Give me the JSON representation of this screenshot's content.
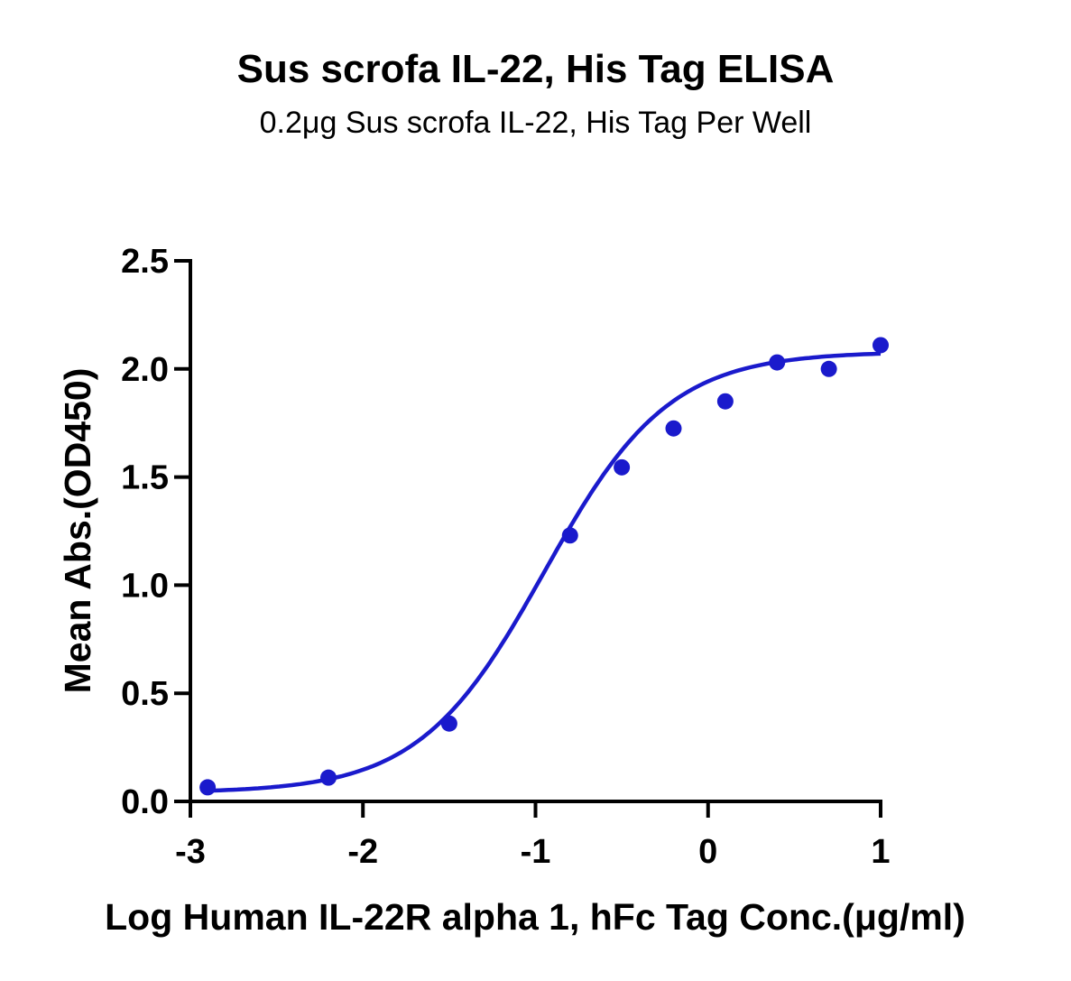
{
  "chart_data": {
    "type": "scatter",
    "title": "Sus scrofa IL-22, His Tag ELISA",
    "subtitle": "0.2μg Sus scrofa IL-22, His Tag Per Well",
    "xlabel": "Log Human IL-22R alpha 1, hFc Tag Conc.(μg/ml)",
    "ylabel": "Mean Abs.(OD450)",
    "xlim": [
      -3,
      1
    ],
    "ylim": [
      0,
      2.5
    ],
    "xticks": [
      "-3",
      "-2",
      "-1",
      "0",
      "1"
    ],
    "yticks": [
      "0.0",
      "0.5",
      "1.0",
      "1.5",
      "2.0",
      "2.5"
    ],
    "grid": false,
    "series": [
      {
        "color": "#1a1acc",
        "points": [
          {
            "x": -2.9,
            "y": 0.065
          },
          {
            "x": -2.2,
            "y": 0.11
          },
          {
            "x": -1.5,
            "y": 0.36
          },
          {
            "x": -0.8,
            "y": 1.23
          },
          {
            "x": -0.5,
            "y": 1.545
          },
          {
            "x": -0.2,
            "y": 1.725
          },
          {
            "x": 0.1,
            "y": 1.85
          },
          {
            "x": 0.4,
            "y": 2.03
          },
          {
            "x": 0.7,
            "y": 2.0
          },
          {
            "x": 1.0,
            "y": 2.11
          }
        ],
        "fit": {
          "model": "4PL",
          "bottom": 0.04,
          "top": 2.08,
          "logEC50": -0.95,
          "hill": 1.2,
          "x_range": [
            -2.9,
            1.0
          ]
        }
      }
    ]
  }
}
